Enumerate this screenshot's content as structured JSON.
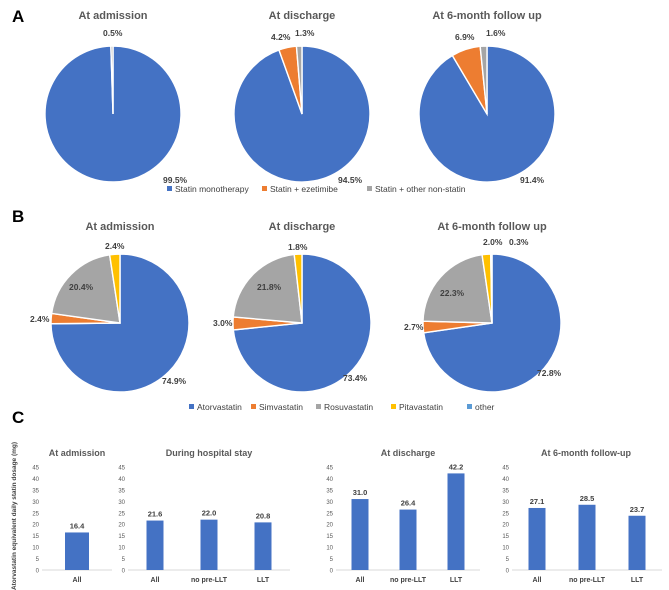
{
  "panels": [
    {
      "letter": "A"
    },
    {
      "letter": "B"
    },
    {
      "letter": "C"
    }
  ],
  "chart_data": [
    {
      "panel": "A",
      "type": "pie",
      "title": "At admission",
      "categories": [
        "Statin monotherapy",
        "Statin + ezetimibe",
        "Statin + other non-statin"
      ],
      "values": [
        99.5,
        0.0,
        0.5
      ],
      "labels": [
        "99.5%",
        "",
        "0.5%"
      ]
    },
    {
      "panel": "A",
      "type": "pie",
      "title": "At discharge",
      "categories": [
        "Statin monotherapy",
        "Statin + ezetimibe",
        "Statin + other non-statin"
      ],
      "values": [
        94.5,
        4.2,
        1.3
      ],
      "labels": [
        "94.5%",
        "4.2%",
        "1.3%"
      ]
    },
    {
      "panel": "A",
      "type": "pie",
      "title": "At 6-month follow up",
      "categories": [
        "Statin monotherapy",
        "Statin + ezetimibe",
        "Statin + other non-statin"
      ],
      "values": [
        91.4,
        6.9,
        1.6
      ],
      "labels": [
        "91.4%",
        "6.9%",
        "1.6%"
      ]
    },
    {
      "panel": "B",
      "type": "pie",
      "title": "At admission",
      "categories": [
        "Atorvastatin",
        "Simvastatin",
        "Rosuvastatin",
        "Pitavastatin",
        "other"
      ],
      "values": [
        74.9,
        2.4,
        20.4,
        2.4,
        0.0
      ],
      "labels": [
        "74.9%",
        "2.4%",
        "20.4%",
        "2.4%",
        ""
      ]
    },
    {
      "panel": "B",
      "type": "pie",
      "title": "At discharge",
      "categories": [
        "Atorvastatin",
        "Simvastatin",
        "Rosuvastatin",
        "Pitavastatin",
        "other"
      ],
      "values": [
        73.4,
        3.0,
        21.8,
        1.8,
        0.0
      ],
      "labels": [
        "73.4%",
        "3.0%",
        "21.8%",
        "1.8%",
        ""
      ]
    },
    {
      "panel": "B",
      "type": "pie",
      "title": "At 6-month follow up",
      "categories": [
        "Atorvastatin",
        "Simvastatin",
        "Rosuvastatin",
        "Pitavastatin",
        "other"
      ],
      "values": [
        72.8,
        2.7,
        22.3,
        2.0,
        0.3
      ],
      "labels": [
        "72.8%",
        "2.7%",
        "22.3%",
        "2.0%",
        "0.3%"
      ]
    },
    {
      "panel": "C",
      "type": "bar",
      "title": "At admission",
      "ylabel": "Atorvastatin equivalent daily statin dosage (mg)",
      "ylim": [
        0,
        45
      ],
      "yticks": [
        0,
        5,
        10,
        15,
        20,
        25,
        30,
        35,
        40,
        45
      ],
      "categories": [
        "All"
      ],
      "values": [
        16.4
      ],
      "data_labels": [
        "16.4"
      ]
    },
    {
      "panel": "C",
      "type": "bar",
      "title": "During hospital stay",
      "ylim": [
        0,
        45
      ],
      "yticks": [
        0,
        5,
        10,
        15,
        20,
        25,
        30,
        35,
        40,
        45
      ],
      "categories": [
        "All",
        "no pre-LLT",
        "LLT"
      ],
      "values": [
        21.6,
        22.0,
        20.8
      ],
      "data_labels": [
        "21.6",
        "22.0",
        "20.8"
      ]
    },
    {
      "panel": "C",
      "type": "bar",
      "title": "At discharge",
      "ylim": [
        0,
        45
      ],
      "yticks": [
        0,
        5,
        10,
        15,
        20,
        25,
        30,
        35,
        40,
        45
      ],
      "categories": [
        "All",
        "no pre-LLT",
        "LLT"
      ],
      "values": [
        31.0,
        26.4,
        42.2
      ],
      "data_labels": [
        "31.0",
        "26.4",
        "42.2"
      ]
    },
    {
      "panel": "C",
      "type": "bar",
      "title": "At 6-month follow-up",
      "ylim": [
        0,
        45
      ],
      "yticks": [
        0,
        5,
        10,
        15,
        20,
        25,
        30,
        35,
        40,
        45
      ],
      "categories": [
        "All",
        "no pre-LLT",
        "LLT"
      ],
      "values": [
        27.1,
        28.5,
        23.7
      ],
      "data_labels": [
        "27.1",
        "28.5",
        "23.7"
      ]
    }
  ],
  "legends": {
    "A": [
      "Statin monotherapy",
      "Statin + ezetimibe",
      "Statin + other non-statin"
    ],
    "B": [
      "Atorvastatin",
      "Simvastatin",
      "Rosuvastatin",
      "Pitavastatin",
      "other"
    ]
  },
  "colors": {
    "blue": "#4472C4",
    "orange": "#ED7D31",
    "gray": "#A5A5A5",
    "yellow": "#FFC000",
    "lightblue": "#5B9BD5",
    "axis": "#D9D9D9"
  }
}
